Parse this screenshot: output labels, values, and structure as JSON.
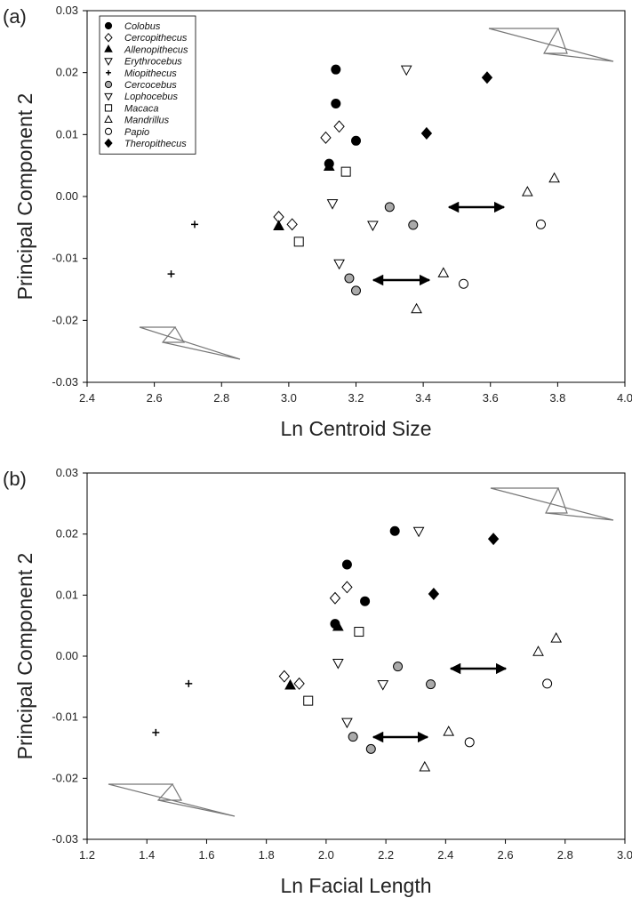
{
  "chart_data": [
    {
      "type": "scatter",
      "panel_label": "(a)",
      "x_label": "Ln Centroid Size",
      "y_label": "Principal Component 2",
      "xlim": [
        2.4,
        4.0
      ],
      "xticks": [
        2.4,
        2.6,
        2.8,
        {
          "value": 3,
          "label": "3.0"
        },
        3.2,
        3.4,
        3.6,
        3.8,
        {
          "value": 4,
          "label": "4.0"
        }
      ],
      "ylim": [
        -0.03,
        0.03
      ],
      "yticks": [
        -0.03,
        -0.02,
        -0.01,
        {
          "value": 0,
          "label": "0.00"
        },
        0.01,
        0.02,
        0.03
      ],
      "legend": "upper left",
      "series": [
        {
          "name": "Colobus",
          "marker": "circle",
          "color": "#000000",
          "x": [
            3.14,
            3.14,
            3.2,
            3.12
          ],
          "values": [
            0.0205,
            0.015,
            0.009,
            0.0053
          ]
        },
        {
          "name": "Cercopithecus",
          "marker": "diamond",
          "color": "#ffffff",
          "x": [
            3.11,
            3.15,
            2.97,
            3.01
          ],
          "values": [
            0.0095,
            0.0113,
            -0.0033,
            -0.0045
          ]
        },
        {
          "name": "Allenopithecus",
          "marker": "triangle-up",
          "color": "#000000",
          "x": [
            3.12,
            2.97
          ],
          "values": [
            0.0048,
            -0.0048
          ]
        },
        {
          "name": "Erythrocebus",
          "marker": "triangle-down",
          "color": "#ffffff",
          "x": [
            3.35
          ],
          "values": [
            0.0205
          ]
        },
        {
          "name": "Miopithecus",
          "marker": "plus",
          "color": "#000000",
          "x": [
            2.72,
            2.65
          ],
          "values": [
            -0.0045,
            -0.0125
          ]
        },
        {
          "name": "Cercocebus",
          "marker": "circle",
          "color": "#aaaaaa",
          "x": [
            3.3,
            3.37,
            3.18,
            3.2
          ],
          "values": [
            -0.0017,
            -0.0046,
            -0.0132,
            -0.0152
          ]
        },
        {
          "name": "Lophocebus",
          "marker": "triangle-down",
          "color": "#ffffff",
          "x": [
            3.13,
            3.25,
            3.15
          ],
          "values": [
            -0.0011,
            -0.0046,
            -0.0108
          ]
        },
        {
          "name": "Macaca",
          "marker": "square",
          "color": "#ffffff",
          "x": [
            3.17,
            3.03
          ],
          "values": [
            0.004,
            -0.0073
          ]
        },
        {
          "name": "Mandrillus",
          "marker": "triangle-up",
          "color": "#ffffff",
          "x": [
            3.71,
            3.79,
            3.46,
            3.38
          ],
          "values": [
            0.0007,
            0.0029,
            -0.0124,
            -0.0182
          ]
        },
        {
          "name": "Papio",
          "marker": "circle",
          "color": "#ffffff",
          "x": [
            3.75,
            3.52
          ],
          "values": [
            -0.0045,
            -0.0141
          ]
        },
        {
          "name": "Theropithecus",
          "marker": "diamond",
          "color": "#000000",
          "x": [
            3.59,
            3.41
          ],
          "values": [
            0.0192,
            0.0102
          ]
        }
      ]
    },
    {
      "type": "scatter",
      "panel_label": "(b)",
      "x_label": "Ln Facial Length",
      "y_label": "Principal Component 2",
      "xlim": [
        1.2,
        3.0
      ],
      "xticks": [
        1.2,
        1.4,
        1.6,
        1.8,
        {
          "value": 2,
          "label": "2.0"
        },
        2.2,
        2.4,
        2.6,
        2.8,
        {
          "value": 3,
          "label": "3.0"
        }
      ],
      "ylim": [
        -0.03,
        0.03
      ],
      "yticks": [
        -0.03,
        -0.02,
        -0.01,
        {
          "value": 0,
          "label": "0.00"
        },
        0.01,
        0.02,
        0.03
      ],
      "series": [
        {
          "marker": "circle",
          "color": "#000000",
          "x": [
            2.23,
            2.07,
            2.13,
            2.03
          ],
          "values": [
            0.0205,
            0.015,
            0.009,
            0.0053
          ]
        },
        {
          "marker": "diamond",
          "color": "#ffffff",
          "x": [
            2.03,
            2.07,
            1.86,
            1.91
          ],
          "values": [
            0.0095,
            0.0113,
            -0.0033,
            -0.0045
          ]
        },
        {
          "marker": "triangle-up",
          "color": "#000000",
          "x": [
            2.04,
            1.88
          ],
          "values": [
            0.0048,
            -0.0048
          ]
        },
        {
          "marker": "triangle-down",
          "color": "#ffffff",
          "x": [
            2.31
          ],
          "values": [
            0.0205
          ]
        },
        {
          "marker": "plus",
          "color": "#000000",
          "x": [
            1.54,
            1.43
          ],
          "values": [
            -0.0045,
            -0.0125
          ]
        },
        {
          "marker": "circle",
          "color": "#aaaaaa",
          "x": [
            2.24,
            2.35,
            2.09,
            2.15
          ],
          "values": [
            -0.0017,
            -0.0046,
            -0.0132,
            -0.0152
          ]
        },
        {
          "marker": "triangle-down",
          "color": "#ffffff",
          "x": [
            2.04,
            2.19,
            2.07
          ],
          "values": [
            -0.0011,
            -0.0046,
            -0.0108
          ]
        },
        {
          "marker": "square",
          "color": "#ffffff",
          "x": [
            2.11,
            1.94
          ],
          "values": [
            0.004,
            -0.0073
          ]
        },
        {
          "marker": "triangle-up",
          "color": "#ffffff",
          "x": [
            2.71,
            2.77,
            2.41,
            2.33
          ],
          "values": [
            0.0007,
            0.0029,
            -0.0124,
            -0.0182
          ]
        },
        {
          "marker": "circle",
          "color": "#ffffff",
          "x": [
            2.74,
            2.48
          ],
          "values": [
            -0.0045,
            -0.0141
          ]
        },
        {
          "marker": "diamond",
          "color": "#000000",
          "x": [
            2.56,
            2.36
          ],
          "values": [
            0.0192,
            0.0102
          ]
        }
      ]
    }
  ]
}
